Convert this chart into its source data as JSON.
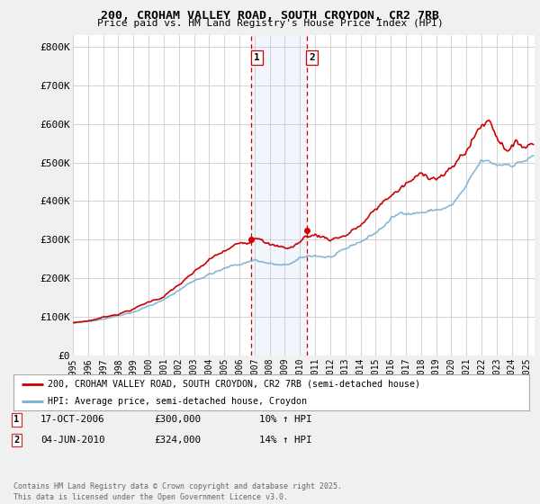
{
  "title_line1": "200, CROHAM VALLEY ROAD, SOUTH CROYDON, CR2 7RB",
  "title_line2": "Price paid vs. HM Land Registry's House Price Index (HPI)",
  "bg_color": "#f0f0f0",
  "plot_bg_color": "#ffffff",
  "ylabel_ticks": [
    "£0",
    "£100K",
    "£200K",
    "£300K",
    "£400K",
    "£500K",
    "£600K",
    "£700K",
    "£800K"
  ],
  "ytick_values": [
    0,
    100000,
    200000,
    300000,
    400000,
    500000,
    600000,
    700000,
    800000
  ],
  "ylim": [
    0,
    830000
  ],
  "xlim_start": 1995.0,
  "xlim_end": 2025.5,
  "transaction1": {
    "date": 2006.8,
    "price": 300000,
    "label": "1",
    "hpi_pct": "10% ↑ HPI",
    "date_str": "17-OCT-2006",
    "price_str": "£300,000"
  },
  "transaction2": {
    "date": 2010.43,
    "price": 324000,
    "label": "2",
    "hpi_pct": "14% ↑ HPI",
    "date_str": "04-JUN-2010",
    "price_str": "£324,000"
  },
  "legend_line1": "200, CROHAM VALLEY ROAD, SOUTH CROYDON, CR2 7RB (semi-detached house)",
  "legend_line2": "HPI: Average price, semi-detached house, Croydon",
  "footnote": "Contains HM Land Registry data © Crown copyright and database right 2025.\nThis data is licensed under the Open Government Licence v3.0.",
  "house_color": "#cc0000",
  "hpi_color": "#7bafd4",
  "highlight_color": "#ddeeff",
  "vline_color": "#cc0000",
  "grid_color": "#cccccc"
}
